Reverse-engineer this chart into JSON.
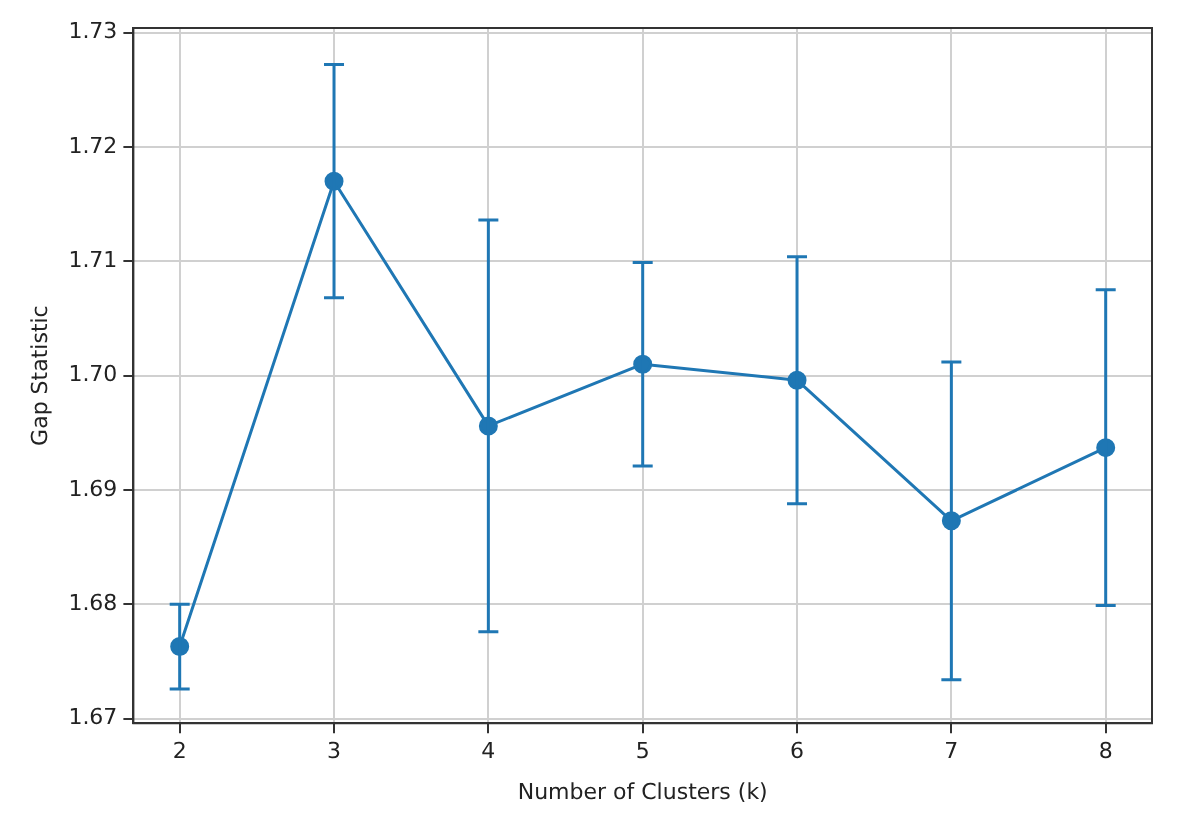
{
  "chart_data": {
    "type": "line",
    "xlabel": "Number of Clusters (k)",
    "ylabel": "Gap Statistic",
    "x": [
      2,
      3,
      4,
      5,
      6,
      7,
      8
    ],
    "series": [
      {
        "color": "#1f77b4",
        "values": [
          1.6763,
          1.717,
          1.6956,
          1.701,
          1.6996,
          1.6873,
          1.6937
        ],
        "errors": [
          0.0037,
          0.0102,
          0.018,
          0.0089,
          0.0108,
          0.0139,
          0.0138
        ]
      }
    ],
    "xlim": [
      1.7,
      8.3
    ],
    "xticks": [
      2,
      3,
      4,
      5,
      6,
      7,
      8
    ],
    "ylim": [
      1.6696,
      1.7304
    ],
    "yticks": [
      1.67,
      1.68,
      1.69,
      {
        "value": 1.7,
        "label": "1.70"
      },
      1.71,
      1.72,
      1.73
    ],
    "grid": true,
    "marker": "circle",
    "line_style": "solid",
    "legend": false
  }
}
